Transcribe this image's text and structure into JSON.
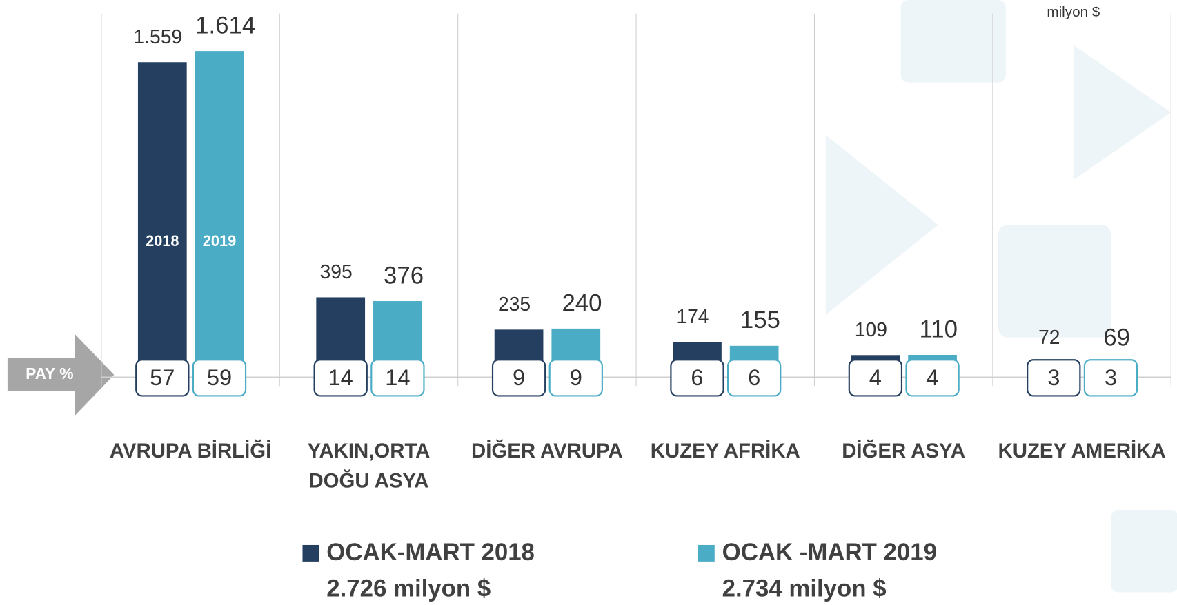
{
  "chart_data": {
    "type": "bar",
    "unit": "milyon $",
    "share_label": "PAY %",
    "categories": [
      [
        "AVRUPA BİRLİĞİ"
      ],
      [
        "YAKIN,ORTA",
        "DOĞU ASYA"
      ],
      [
        "DİĞER AVRUPA"
      ],
      [
        "KUZEY AFRİKA"
      ],
      [
        "DİĞER ASYA"
      ],
      [
        "KUZEY AMERİKA"
      ]
    ],
    "ylim": [
      0,
      1800
    ],
    "series": [
      {
        "name": "OCAK-MART 2018",
        "total": "2.726 milyon $",
        "bar_label": "2018",
        "color": "#243f60",
        "values": [
          1559,
          395,
          235,
          174,
          109,
          72
        ],
        "value_labels": [
          "1.559",
          "395",
          "235",
          "174",
          "109",
          "72"
        ],
        "shares": [
          57,
          14,
          9,
          6,
          4,
          3
        ]
      },
      {
        "name": "OCAK -MART 2019",
        "total": "2.734 milyon $",
        "bar_label": "2019",
        "color": "#4bacc6",
        "values": [
          1614,
          376,
          240,
          155,
          110,
          69
        ],
        "value_labels": [
          "1.614",
          "376",
          "240",
          "155",
          "110",
          "69"
        ],
        "shares": [
          59,
          14,
          9,
          6,
          4,
          3
        ]
      }
    ]
  }
}
